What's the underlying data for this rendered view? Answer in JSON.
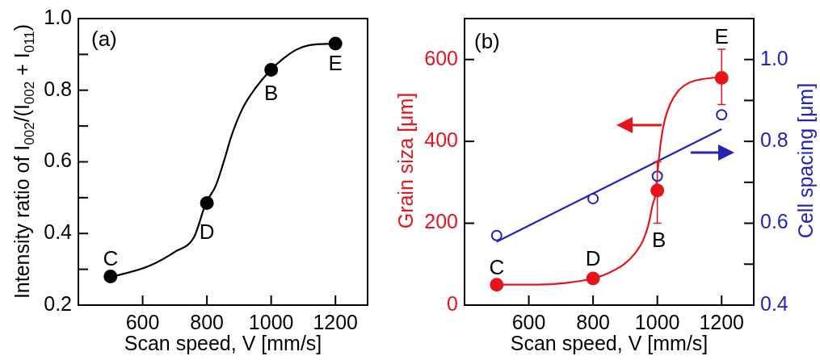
{
  "chart_data": [
    {
      "type": "scatter",
      "xlabel": "Scan speed, V [mm/s]",
      "ylabel": "Intensity ratio of I$_{002}$/(I$_{002}$ + I$_{011}$)",
      "xlim": [
        400,
        1300
      ],
      "ylim": [
        0.2,
        1.0
      ],
      "xticks": [
        600,
        800,
        1000,
        1200
      ],
      "yticks": [
        0.2,
        {
          "value": 0.3,
          "label": null
        },
        0.4,
        {
          "value": 0.5,
          "label": null
        },
        0.6,
        {
          "value": 0.7,
          "label": null
        },
        0.8,
        {
          "value": 0.9,
          "label": null
        },
        {
          "value": 1,
          "label": "1.0"
        }
      ],
      "marker": "circle",
      "series": [
        {
          "type": "scatter",
          "color": "#000000",
          "x": [
            500,
            800,
            1000,
            1200
          ],
          "values": [
            0.28,
            0.485,
            0.857,
            0.93
          ]
        },
        {
          "type": "line",
          "color": "#000000",
          "marker": "none",
          "x": [
            500,
            617,
            701,
            760,
            797,
            827,
            852,
            877,
            911,
            953,
            999,
            1036,
            1078,
            1120,
            1196
          ],
          "values": [
            0.278,
            0.308,
            0.349,
            0.39,
            0.485,
            0.532,
            0.599,
            0.674,
            0.749,
            0.808,
            0.857,
            0.887,
            0.913,
            0.926,
            0.93
          ]
        }
      ],
      "annotations": [
        "(a)",
        {
          "text": "C",
          "x": 500,
          "y": 0.28
        },
        {
          "text": "D",
          "x": 800,
          "y": 0.485
        },
        {
          "text": "B",
          "x": 1000,
          "y": 0.857
        },
        {
          "text": "E",
          "x": 1200,
          "y": 0.93
        }
      ]
    },
    {
      "type": "scatter",
      "xlabel": "Scan speed, V [mm/s]",
      "ylabel": "Grain siza [μm]",
      "y2label": "Cell spacing [μm]",
      "xlim": [
        400,
        1300
      ],
      "ylim": [
        0,
        700
      ],
      "y2lim": [
        0.4,
        1.1
      ],
      "xticks": [
        600,
        800,
        1000,
        1200
      ],
      "yticks": [
        0,
        200,
        400,
        600
      ],
      "y2ticks": [
        0.4,
        {
          "value": 0.5,
          "label": null
        },
        0.6,
        {
          "value": 0.7,
          "label": null
        },
        0.8,
        {
          "value": 0.9,
          "label": null
        },
        {
          "value": 1,
          "label": "1.0"
        }
      ],
      "marker": "circle",
      "series": [
        {
          "type": "scatter",
          "color": "#e8141b",
          "x": [
            500,
            800,
            1000,
            1200
          ],
          "values": [
            50,
            65,
            280,
            555
          ],
          "errors": [
            null,
            null,
            [
              200,
              350
            ],
            [
              490,
              625
            ]
          ]
        },
        {
          "type": "line",
          "color": "#e8141b",
          "marker": "none",
          "x": [
            500,
            630,
            714,
            799,
            847,
            898,
            931,
            956,
            973,
            985,
            994,
            1002,
            1011,
            1023,
            1040,
            1065,
            1098,
            1132,
            1182
          ],
          "values": [
            50,
            50,
            54,
            65,
            78,
            101,
            127,
            159,
            198,
            244,
            270,
            335,
            400,
            452,
            491,
            523,
            543,
            551,
            556
          ]
        },
        {
          "type": "scatter",
          "axis": "y2",
          "color": "#2323b8",
          "x": [
            500,
            800,
            1000,
            1200
          ],
          "values": [
            0.57,
            0.66,
            0.715,
            0.865
          ]
        },
        {
          "type": "line",
          "axis": "y2",
          "color": "#2323b8",
          "marker": "none",
          "x": [
            500,
            1200
          ],
          "values": [
            0.555,
            0.83
          ]
        }
      ],
      "annotations": [
        "(b)",
        {
          "text": "C",
          "x": 500,
          "y": 50
        },
        {
          "text": "D",
          "x": 800,
          "y": 65
        },
        {
          "text": "B",
          "x": 1000,
          "y": 280
        },
        {
          "text": "E",
          "x": 1200,
          "y": 555
        }
      ]
    }
  ]
}
